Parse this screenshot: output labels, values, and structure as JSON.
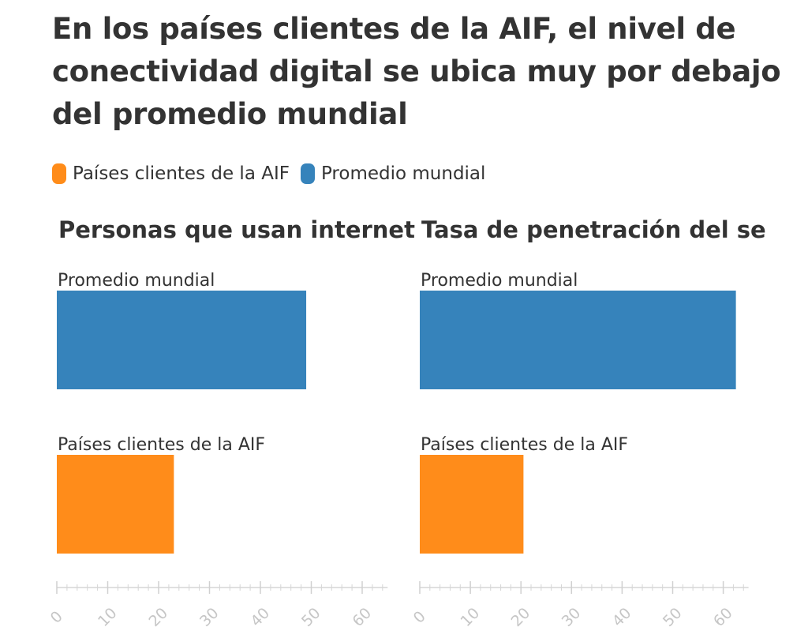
{
  "title": "En los países clientes de la AIF, el nivel de conectividad digital se ubica muy por debajo del promedio mundial",
  "legend": [
    {
      "label": "Países clientes de la AIF",
      "color": "#ff8c1a"
    },
    {
      "label": "Promedio mundial",
      "color": "#3683bb"
    }
  ],
  "chart_data": [
    {
      "type": "bar",
      "orientation": "horizontal",
      "title": "Personas que usan internet",
      "categories": [
        "Promedio mundial",
        "Países clientes de la AIF"
      ],
      "values": [
        49,
        23
      ],
      "colors": [
        "#3683bb",
        "#ff8c1a"
      ],
      "xlim": [
        0,
        65
      ],
      "xticks": [
        "0",
        "10",
        "20",
        "30",
        "40",
        "50",
        "60"
      ]
    },
    {
      "type": "bar",
      "orientation": "horizontal",
      "title": "Tasa de penetración del ser",
      "categories": [
        "Promedio mundial",
        "Países clientes de la AIF"
      ],
      "values": [
        62.5,
        20.5
      ],
      "colors": [
        "#3683bb",
        "#ff8c1a"
      ],
      "xlim": [
        0,
        65
      ],
      "xticks": [
        "0",
        "10",
        "20",
        "30",
        "40",
        "50",
        "60"
      ]
    }
  ]
}
